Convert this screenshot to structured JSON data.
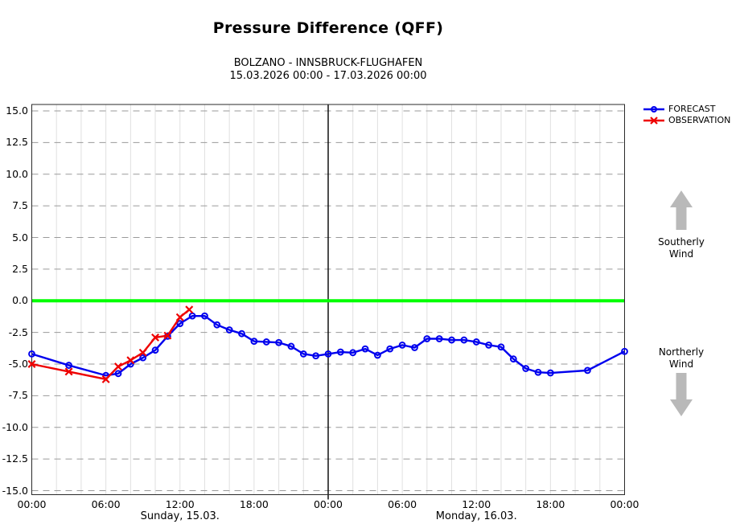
{
  "header": {
    "title": "Pressure Difference (QFF)",
    "subtitle_station_pair": "BOLZANO - INNSBRUCK-FLUGHAFEN",
    "subtitle_period": "15.03.2026 00:00 - 17.03.2026 00:00"
  },
  "wind": {
    "southerly_label": "Southerly Wind",
    "northerly_label": "Northerly Wind",
    "arrow_color": "#b9b9b9"
  },
  "chart_data": {
    "type": "line",
    "title": "Pressure Difference (QFF)",
    "x_unit": "hours since 15.03.2026 00:00",
    "xlim": [
      0,
      48
    ],
    "ylim": [
      -15,
      15
    ],
    "zero_line_color": "#00ff00",
    "day_divider_hour": 24,
    "grid": {
      "horizontal": "dashed every 2.5",
      "vertical": "solid every 2h"
    },
    "legend_position": "top-right",
    "y_tick_labels": [
      "15.0",
      "12.5",
      "10.0",
      "7.5",
      "5.0",
      "2.5",
      "0.0",
      "-2.5",
      "-5.0",
      "-7.5",
      "-10.0",
      "-12.5",
      "-15.0"
    ],
    "y_tick_values": [
      15,
      12.5,
      10,
      7.5,
      5,
      2.5,
      0,
      -2.5,
      -5,
      -7.5,
      -10,
      -12.5,
      -15
    ],
    "x_tick_hours": [
      0,
      6,
      12,
      18,
      24,
      30,
      36,
      42,
      48
    ],
    "x_tick_labels": [
      "00:00",
      "06:00",
      "12:00",
      "18:00",
      "00:00",
      "06:00",
      "12:00",
      "18:00",
      "00:00"
    ],
    "day_labels": [
      {
        "label": "Sunday, 15.03.",
        "center_hour": 12
      },
      {
        "label": "Monday, 16.03.",
        "center_hour": 36
      }
    ],
    "series": [
      {
        "name": "FORECAST",
        "color": "#0000ee",
        "marker": "circle",
        "x": [
          0,
          3,
          6,
          7,
          8,
          9,
          10,
          11,
          12,
          13,
          14,
          15,
          16,
          17,
          18,
          19,
          20,
          21,
          22,
          23,
          24,
          25,
          26,
          27,
          28,
          29,
          30,
          31,
          32,
          33,
          34,
          35,
          36,
          37,
          38,
          39,
          40,
          41,
          42,
          45,
          48
        ],
        "y": [
          -4.2,
          -5.1,
          -5.9,
          -5.75,
          -5.0,
          -4.5,
          -3.9,
          -2.8,
          -1.8,
          -1.2,
          -1.2,
          -1.9,
          -2.3,
          -2.6,
          -3.2,
          -3.25,
          -3.3,
          -3.6,
          -4.2,
          -4.35,
          -4.2,
          -4.05,
          -4.1,
          -3.8,
          -4.3,
          -3.8,
          -3.5,
          -3.7,
          -3.0,
          -3.0,
          -3.1,
          -3.1,
          -3.25,
          -3.5,
          -3.65,
          -4.6,
          -5.35,
          -5.65,
          -5.7,
          -5.5,
          -4.0
        ]
      },
      {
        "name": "OBSERVATION",
        "color": "#ee0000",
        "marker": "x",
        "x": [
          0,
          3,
          6,
          7,
          8,
          9,
          10,
          11,
          12,
          12.75
        ],
        "y": [
          -5.0,
          -5.6,
          -6.2,
          -5.2,
          -4.7,
          -4.1,
          -2.9,
          -2.75,
          -1.3,
          -0.7
        ]
      }
    ]
  }
}
